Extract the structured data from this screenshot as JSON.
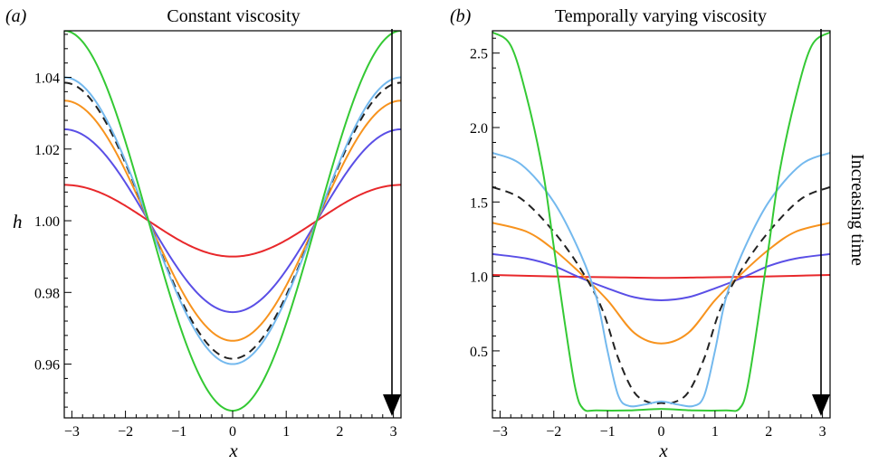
{
  "chart_data": [
    {
      "type": "line",
      "panel_label": "(a)",
      "title": "Constant viscosity",
      "xlabel": "x",
      "ylabel": "h",
      "xlim": [
        -3.14159,
        3.14159
      ],
      "ylim": [
        0.945,
        1.053
      ],
      "xticks": [
        -3,
        -2,
        -1,
        0,
        1,
        2,
        3
      ],
      "xtick_labels": [
        "−3",
        "−2",
        "−1",
        "0",
        "1",
        "2",
        "3"
      ],
      "yticks": [
        0.96,
        0.98,
        1.0,
        1.02,
        1.04
      ],
      "ytick_labels": [
        "0.96",
        "0.98",
        "1.00",
        "1.02",
        "1.04"
      ],
      "grid": false,
      "series": [
        {
          "color": "#e8282b",
          "style": "solid",
          "model": "cos",
          "amplitude": 0.01
        },
        {
          "color": "#5a4fe6",
          "style": "solid",
          "model": "cos",
          "amplitude": 0.0255
        },
        {
          "color": "#f7931e",
          "style": "solid",
          "model": "cos",
          "amplitude": 0.0335
        },
        {
          "color": "#222222",
          "style": "dashed",
          "model": "cos",
          "amplitude": 0.0385
        },
        {
          "color": "#74b9ee",
          "style": "solid",
          "model": "cos",
          "amplitude": 0.04
        },
        {
          "color": "#34c934",
          "style": "solid",
          "model": "cos",
          "amplitude": 0.053
        }
      ]
    },
    {
      "type": "line",
      "panel_label": "(b)",
      "title": "Temporally varying viscosity",
      "xlabel": "x",
      "ylabel": "",
      "xlim": [
        -3.14159,
        3.14159
      ],
      "ylim": [
        0.05,
        2.65
      ],
      "xticks": [
        -3,
        -2,
        -1,
        0,
        1,
        2,
        3
      ],
      "xtick_labels": [
        "−3",
        "−2",
        "−1",
        "0",
        "1",
        "2",
        "3"
      ],
      "yticks": [
        0.5,
        1.0,
        1.5,
        2.0,
        2.5
      ],
      "ytick_labels": [
        "0.5",
        "1.0",
        "1.5",
        "2.0",
        "2.5"
      ],
      "grid": false,
      "series": [
        {
          "color": "#e8282b",
          "style": "solid",
          "points": [
            [
              -3.14,
              1.01
            ],
            [
              -2.0,
              1.0
            ],
            [
              -1.0,
              0.995
            ],
            [
              0.0,
              0.99
            ],
            [
              1.0,
              0.995
            ],
            [
              2.0,
              1.0
            ],
            [
              3.14,
              1.01
            ]
          ]
        },
        {
          "color": "#5a4fe6",
          "style": "solid",
          "points": [
            [
              -3.14,
              1.15
            ],
            [
              -2.5,
              1.12
            ],
            [
              -2.0,
              1.07
            ],
            [
              -1.5,
              0.99
            ],
            [
              -1.0,
              0.92
            ],
            [
              -0.5,
              0.86
            ],
            [
              0.0,
              0.84
            ],
            [
              0.5,
              0.86
            ],
            [
              1.0,
              0.92
            ],
            [
              1.5,
              0.99
            ],
            [
              2.0,
              1.07
            ],
            [
              2.5,
              1.12
            ],
            [
              3.14,
              1.15
            ]
          ]
        },
        {
          "color": "#f7931e",
          "style": "solid",
          "points": [
            [
              -3.14,
              1.36
            ],
            [
              -2.5,
              1.3
            ],
            [
              -2.0,
              1.18
            ],
            [
              -1.5,
              1.02
            ],
            [
              -1.0,
              0.84
            ],
            [
              -0.5,
              0.62
            ],
            [
              0.0,
              0.55
            ],
            [
              0.5,
              0.62
            ],
            [
              1.0,
              0.84
            ],
            [
              1.5,
              1.02
            ],
            [
              2.0,
              1.18
            ],
            [
              2.5,
              1.3
            ],
            [
              3.14,
              1.36
            ]
          ]
        },
        {
          "color": "#222222",
          "style": "dashed",
          "points": [
            [
              -3.14,
              1.6
            ],
            [
              -2.6,
              1.52
            ],
            [
              -2.0,
              1.3
            ],
            [
              -1.5,
              1.05
            ],
            [
              -1.1,
              0.78
            ],
            [
              -0.8,
              0.45
            ],
            [
              -0.5,
              0.22
            ],
            [
              -0.2,
              0.15
            ],
            [
              0.0,
              0.15
            ],
            [
              0.2,
              0.15
            ],
            [
              0.5,
              0.22
            ],
            [
              0.8,
              0.45
            ],
            [
              1.1,
              0.78
            ],
            [
              1.5,
              1.05
            ],
            [
              2.0,
              1.3
            ],
            [
              2.6,
              1.52
            ],
            [
              3.14,
              1.6
            ]
          ]
        },
        {
          "color": "#74b9ee",
          "style": "solid",
          "points": [
            [
              -3.14,
              1.83
            ],
            [
              -2.6,
              1.75
            ],
            [
              -2.0,
              1.5
            ],
            [
              -1.5,
              1.15
            ],
            [
              -1.2,
              0.85
            ],
            [
              -1.0,
              0.5
            ],
            [
              -0.8,
              0.2
            ],
            [
              -0.6,
              0.13
            ],
            [
              -0.3,
              0.14
            ],
            [
              0.0,
              0.16
            ],
            [
              0.3,
              0.14
            ],
            [
              0.6,
              0.13
            ],
            [
              0.8,
              0.2
            ],
            [
              1.0,
              0.5
            ],
            [
              1.2,
              0.85
            ],
            [
              1.5,
              1.15
            ],
            [
              2.0,
              1.5
            ],
            [
              2.6,
              1.75
            ],
            [
              3.14,
              1.83
            ]
          ]
        },
        {
          "color": "#34c934",
          "style": "solid",
          "points": [
            [
              -3.14,
              2.64
            ],
            [
              -2.8,
              2.55
            ],
            [
              -2.5,
              2.2
            ],
            [
              -2.2,
              1.7
            ],
            [
              -2.0,
              1.2
            ],
            [
              -1.8,
              0.7
            ],
            [
              -1.6,
              0.25
            ],
            [
              -1.45,
              0.11
            ],
            [
              -1.2,
              0.1
            ],
            [
              -0.6,
              0.1
            ],
            [
              0.0,
              0.11
            ],
            [
              0.6,
              0.1
            ],
            [
              1.2,
              0.1
            ],
            [
              1.45,
              0.11
            ],
            [
              1.6,
              0.25
            ],
            [
              1.8,
              0.7
            ],
            [
              2.0,
              1.2
            ],
            [
              2.2,
              1.7
            ],
            [
              2.5,
              2.2
            ],
            [
              2.8,
              2.55
            ],
            [
              3.14,
              2.64
            ]
          ]
        }
      ]
    }
  ],
  "annotation": {
    "text": "Increasing time"
  }
}
